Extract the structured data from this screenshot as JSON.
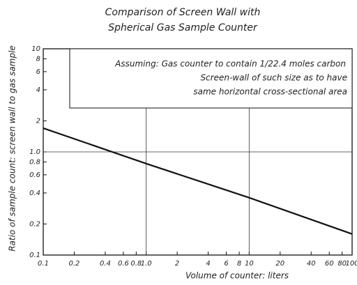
{
  "chart_data": {
    "type": "line",
    "title": [
      "Comparison of Screen Wall with",
      "Spherical Gas Sample Counter"
    ],
    "x_label": "Volume of counter: liters",
    "y_label": "Ratio of sample count: screen wall to gas sample",
    "annotation": [
      "Assuming: Gas counter to contain 1/22.4 moles carbon",
      "Screen-wall of such size as to have",
      "same horizontal cross-sectional area"
    ],
    "log_x": true,
    "log_y": true,
    "grid": "decades",
    "xlim": [
      0.1,
      100
    ],
    "xticks": [
      0.1,
      0.2,
      0.4,
      0.6,
      0.8,
      {
        "value": 1,
        "label": "1.0"
      },
      2,
      4,
      6,
      8,
      10,
      20,
      40,
      60,
      80,
      100
    ],
    "ylim": [
      0.1,
      10
    ],
    "yticks": [
      0.1,
      0.2,
      0.4,
      0.6,
      0.8,
      {
        "value": 1,
        "label": "1.0"
      },
      2,
      4,
      6,
      8,
      10
    ],
    "series": [
      {
        "color": "#111",
        "x": [
          0.1,
          1,
          10,
          100
        ],
        "values": [
          1.7,
          0.77,
          0.36,
          0.16
        ]
      }
    ]
  }
}
